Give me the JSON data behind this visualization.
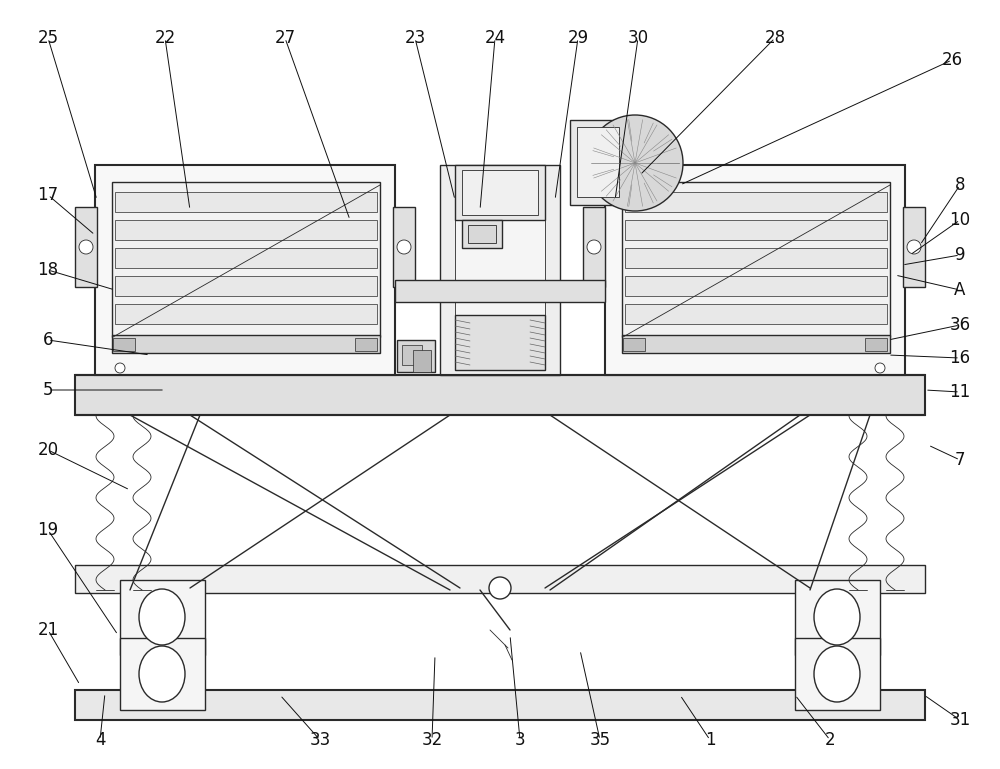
{
  "bg_color": "#ffffff",
  "line_color": "#2a2a2a",
  "label_color": "#111111",
  "figsize": [
    10.0,
    7.69
  ],
  "dpi": 100,
  "lw_main": 1.0,
  "lw_thick": 1.5,
  "lw_thin": 0.6
}
